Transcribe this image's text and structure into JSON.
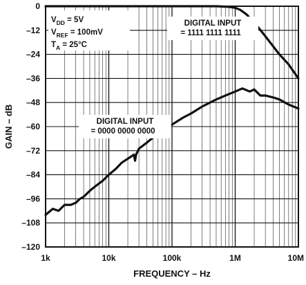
{
  "chart_data": {
    "type": "line",
    "xscale": "log",
    "xlim": [
      1000,
      10000000
    ],
    "ylim": [
      -120,
      0
    ],
    "xlabel": "FREQUENCY – Hz",
    "ylabel": "GAIN – dB",
    "grid": true,
    "x_tick_labels": [
      "1k",
      "10k",
      "100k",
      "1M",
      "10M"
    ],
    "x_tick_values": [
      1000,
      10000,
      100000,
      1000000,
      10000000
    ],
    "y_tick_values": [
      0,
      -12,
      -24,
      -36,
      -48,
      -60,
      -72,
      -84,
      -96,
      -108,
      -120
    ],
    "y_tick_labels": [
      "0",
      "–12",
      "–24",
      "–36",
      "–48",
      "–60",
      "–72",
      "–84",
      "–96",
      "–108",
      "–120"
    ],
    "conditions": [
      {
        "main": "V",
        "sub": "DD",
        "rest": " = 5V"
      },
      {
        "main": "V",
        "sub": "REF",
        "rest": " = 100mV"
      },
      {
        "main": "T",
        "sub": "A",
        "rest": " = 25°C"
      }
    ],
    "annotations": [
      {
        "line1": "DIGITAL INPUT",
        "line2": "= 1111  1111  1111"
      },
      {
        "line1": "DIGITAL INPUT",
        "line2": "= 0000  0000  0000"
      }
    ],
    "series": [
      {
        "x": [
          1000,
          100000,
          500000,
          800000,
          1000000,
          1200000,
          1500000,
          2000000,
          3000000,
          5000000,
          7000000,
          10000000
        ],
        "y": [
          0,
          0,
          0,
          -0.3,
          -0.8,
          -1.8,
          -4,
          -8,
          -15,
          -24,
          -29,
          -36
        ]
      },
      {
        "x": [
          1000,
          1300,
          1600,
          2000,
          2500,
          3000,
          3500,
          4000,
          5000,
          6000,
          8000,
          10000,
          13000,
          16000,
          20000,
          25000,
          26000,
          27000,
          30000,
          40000,
          50000,
          70000,
          100000,
          150000,
          200000,
          300000,
          500000,
          700000,
          1000000,
          1300000,
          1700000,
          2000000,
          2500000,
          3000000,
          4000000,
          5000000,
          7000000,
          10000000
        ],
        "y": [
          -104,
          -101,
          -102,
          -99,
          -99,
          -98,
          -96,
          -95,
          -92,
          -90,
          -87,
          -84,
          -81,
          -78,
          -76,
          -74,
          -77,
          -74,
          -71,
          -68,
          -65.5,
          -62,
          -59,
          -55.5,
          -53.5,
          -50,
          -46.5,
          -44.5,
          -42.5,
          -41,
          -42.5,
          -41.5,
          -44.5,
          -44.5,
          -45.5,
          -46.5,
          -49,
          -51
        ]
      }
    ]
  }
}
